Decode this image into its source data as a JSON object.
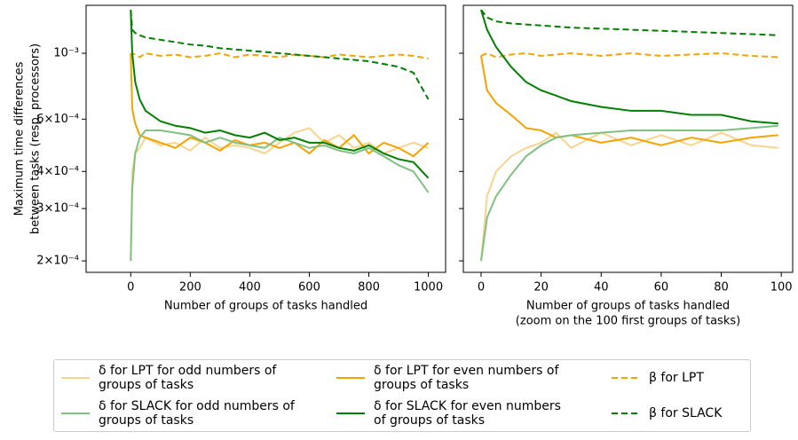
{
  "chart_data": [
    {
      "type": "line",
      "log_y": true,
      "y_label": [
        "Maximum time differences",
        "between tasks (resp. processors)"
      ],
      "x_label": "Number of groups of tasks handled",
      "xlim": [
        -150,
        1058
      ],
      "xticks": [
        0,
        200,
        400,
        600,
        800,
        1000
      ],
      "ylim": [
        0.000183,
        0.00145
      ],
      "yticks": [
        {
          "value": 0.0002,
          "label": "2×10⁻⁴"
        },
        {
          "value": 0.0003,
          "label": "3×10⁻⁴"
        },
        {
          "value": 0.0004,
          "label": "4×10⁻⁴"
        },
        {
          "value": 0.0006,
          "label": "6×10⁻⁴"
        },
        {
          "value": 0.001,
          "label": "10⁻³"
        }
      ],
      "x": [
        0,
        5,
        15,
        30,
        50,
        100,
        150,
        200,
        250,
        300,
        350,
        400,
        450,
        500,
        550,
        600,
        650,
        700,
        750,
        800,
        850,
        900,
        950,
        1000
      ],
      "series": [
        {
          "name": "δ for LPT for odd numbers of groups of tasks",
          "color": "#f8d48e",
          "style": "solid",
          "values": [
            0.0002,
            0.0004,
            0.00046,
            0.00048,
            0.00052,
            0.00049,
            0.0005,
            0.00047,
            0.00052,
            0.00048,
            0.00049,
            0.00048,
            0.00046,
            0.0005,
            0.00054,
            0.00056,
            0.0005,
            0.00053,
            0.00048,
            0.0005,
            0.00046,
            0.00048,
            0.0005,
            0.00048
          ]
        },
        {
          "name": "δ for LPT for even numbers of groups of tasks",
          "color": "#f5a300",
          "style": "solid",
          "values": [
            0.001,
            0.00065,
            0.00058,
            0.00053,
            0.00052,
            0.0005,
            0.00048,
            0.00052,
            0.0005,
            0.00047,
            0.00051,
            0.00049,
            0.0005,
            0.00048,
            0.0005,
            0.00046,
            0.00051,
            0.00048,
            0.00053,
            0.00046,
            0.0005,
            0.00048,
            0.00045,
            0.0005
          ]
        },
        {
          "name": "β for LPT",
          "color": "#f5a300",
          "style": "dashed",
          "values": [
            0.00098,
            0.001,
            0.00099,
            0.00097,
            0.001,
            0.00098,
            0.00099,
            0.00097,
            0.00098,
            0.001,
            0.00097,
            0.00099,
            0.00098,
            0.00097,
            0.00099,
            0.00098,
            0.00097,
            0.00099,
            0.00098,
            0.00097,
            0.00098,
            0.00099,
            0.00098,
            0.00096
          ]
        },
        {
          "name": "δ for SLACK for odd numbers of groups of tasks",
          "color": "#80c080",
          "style": "solid",
          "values": [
            0.0002,
            0.00035,
            0.00046,
            0.00052,
            0.00055,
            0.00055,
            0.00054,
            0.00053,
            0.0005,
            0.00052,
            0.0005,
            0.00049,
            0.00048,
            0.00052,
            0.0005,
            0.00048,
            0.00049,
            0.00047,
            0.00046,
            0.00048,
            0.00045,
            0.00042,
            0.0004,
            0.00034
          ]
        },
        {
          "name": "δ for SLACK for even numbers of groups of tasks",
          "color": "#008000",
          "style": "solid",
          "values": [
            0.0014,
            0.001,
            0.0008,
            0.0007,
            0.00064,
            0.00059,
            0.00057,
            0.00056,
            0.00054,
            0.00055,
            0.00053,
            0.00052,
            0.00054,
            0.00051,
            0.00052,
            0.0005,
            0.0005,
            0.00048,
            0.00047,
            0.00049,
            0.00046,
            0.00044,
            0.00043,
            0.00038
          ]
        },
        {
          "name": "β for SLACK",
          "color": "#008000",
          "style": "dashed",
          "values": [
            0.0014,
            0.0012,
            0.00117,
            0.00115,
            0.00113,
            0.00111,
            0.00109,
            0.00107,
            0.00106,
            0.00104,
            0.00103,
            0.00102,
            0.00101,
            0.001,
            0.00099,
            0.00098,
            0.00097,
            0.00096,
            0.00095,
            0.00094,
            0.00092,
            0.0009,
            0.00086,
            0.0007
          ]
        }
      ]
    },
    {
      "type": "line",
      "log_y": true,
      "x_label": [
        "Number of groups of tasks handled",
        "(zoom on the 100 first groups of tasks)"
      ],
      "xlim": [
        -5.9,
        103.8
      ],
      "xticks": [
        0,
        20,
        40,
        60,
        80,
        100
      ],
      "ylim": [
        0.000183,
        0.00145
      ],
      "x": [
        0,
        2,
        5,
        10,
        15,
        20,
        25,
        30,
        40,
        50,
        60,
        70,
        80,
        90,
        99
      ],
      "series": [
        {
          "color": "#f8d48e",
          "style": "solid",
          "values": [
            0.0002,
            0.00033,
            0.0004,
            0.00045,
            0.00048,
            0.0005,
            0.00054,
            0.00048,
            0.00054,
            0.00049,
            0.00053,
            0.00049,
            0.00054,
            0.00049,
            0.00048
          ]
        },
        {
          "color": "#f5a300",
          "style": "solid",
          "values": [
            0.00098,
            0.00075,
            0.00068,
            0.00062,
            0.00056,
            0.00055,
            0.00052,
            0.00053,
            0.0005,
            0.00052,
            0.00049,
            0.00052,
            0.0005,
            0.00052,
            0.00053
          ]
        },
        {
          "color": "#f5a300",
          "style": "dashed",
          "values": [
            0.00098,
            0.001,
            0.00097,
            0.00099,
            0.001,
            0.00098,
            0.00099,
            0.001,
            0.00098,
            0.001,
            0.00098,
            0.00099,
            0.001,
            0.00098,
            0.00097
          ]
        },
        {
          "color": "#80c080",
          "style": "solid",
          "values": [
            0.0002,
            0.00028,
            0.00033,
            0.00039,
            0.00045,
            0.00049,
            0.00052,
            0.00053,
            0.00054,
            0.00055,
            0.00055,
            0.00055,
            0.00055,
            0.00056,
            0.00057
          ]
        },
        {
          "color": "#008000",
          "style": "solid",
          "values": [
            0.0014,
            0.0012,
            0.00105,
            0.0009,
            0.0008,
            0.00075,
            0.00072,
            0.00069,
            0.00066,
            0.00064,
            0.00064,
            0.00062,
            0.00062,
            0.00059,
            0.00058
          ]
        },
        {
          "color": "#008000",
          "style": "dashed",
          "values": [
            0.0014,
            0.00132,
            0.00128,
            0.00126,
            0.00125,
            0.00124,
            0.00123,
            0.00122,
            0.00121,
            0.0012,
            0.00119,
            0.00118,
            0.00117,
            0.00116,
            0.00115
          ]
        }
      ]
    }
  ]
}
